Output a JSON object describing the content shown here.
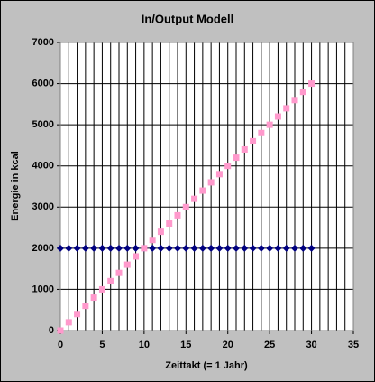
{
  "chart_data": {
    "type": "scatter",
    "title": "In/Output Modell",
    "xlabel": "Zeittakt (= 1 Jahr)",
    "ylabel": "Energie in kcal",
    "x": [
      0,
      1,
      2,
      3,
      4,
      5,
      6,
      7,
      8,
      9,
      10,
      11,
      12,
      13,
      14,
      15,
      16,
      17,
      18,
      19,
      20,
      21,
      22,
      23,
      24,
      25,
      26,
      27,
      28,
      29,
      30
    ],
    "series": [
      {
        "color": "#000080",
        "marker": "diamond",
        "values": [
          2000,
          2000,
          2000,
          2000,
          2000,
          2000,
          2000,
          2000,
          2000,
          2000,
          2000,
          2000,
          2000,
          2000,
          2000,
          2000,
          2000,
          2000,
          2000,
          2000,
          2000,
          2000,
          2000,
          2000,
          2000,
          2000,
          2000,
          2000,
          2000,
          2000,
          2000
        ]
      },
      {
        "color": "#ff99cc",
        "marker": "square",
        "values": [
          0,
          200,
          400,
          600,
          800,
          1000,
          1200,
          1400,
          1600,
          1800,
          2000,
          2200,
          2400,
          2600,
          2800,
          3000,
          3200,
          3400,
          3600,
          3800,
          4000,
          4200,
          4400,
          4600,
          4800,
          5000,
          5200,
          5400,
          5600,
          5800,
          6000
        ]
      }
    ],
    "xlim": [
      0,
      35
    ],
    "xticks": [
      0,
      5,
      10,
      15,
      20,
      25,
      30,
      35
    ],
    "xminorticks": [
      0,
      1,
      2,
      3,
      4,
      5,
      6,
      7,
      8,
      9,
      10,
      11,
      12,
      13,
      14,
      15,
      16,
      17,
      18,
      19,
      20,
      21,
      22,
      23,
      24,
      25,
      26,
      27,
      28,
      29,
      30,
      31,
      32,
      33,
      34,
      35
    ],
    "ylim": [
      0,
      7000
    ],
    "yticks": [
      0,
      1000,
      2000,
      3000,
      4000,
      5000,
      6000,
      7000
    ],
    "grid": true
  }
}
